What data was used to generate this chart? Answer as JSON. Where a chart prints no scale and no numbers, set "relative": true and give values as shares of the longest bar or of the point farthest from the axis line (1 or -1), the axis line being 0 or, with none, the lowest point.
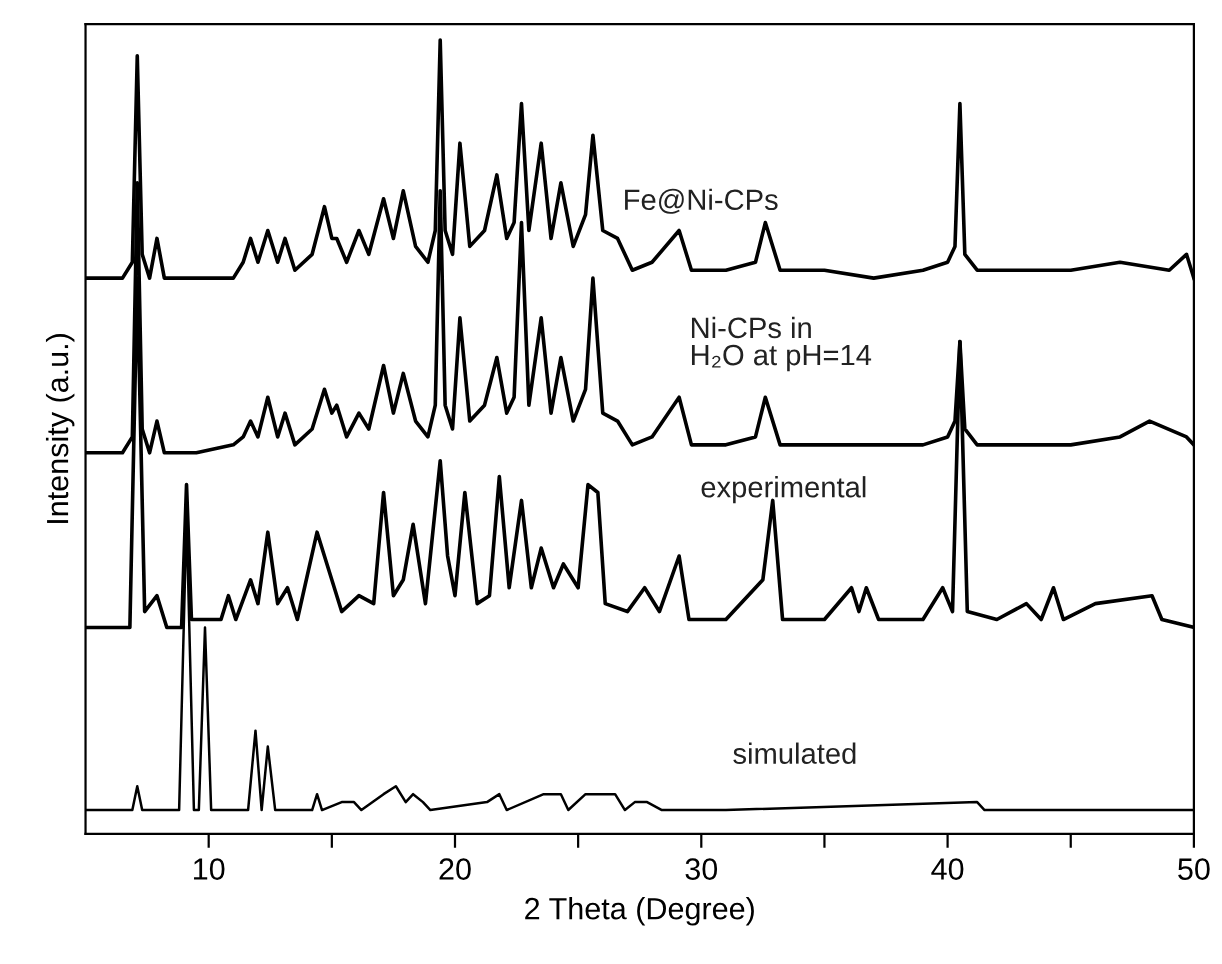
{
  "chart_data": {
    "type": "line",
    "xlabel": "2 Theta (Degree)",
    "ylabel": "Intensity (a.u.)",
    "relative": true,
    "tick_labels": "x",
    "grid": false,
    "legend": false,
    "marker": "none",
    "line_style": "solid",
    "xlim": [
      5,
      50
    ],
    "xticks": [
      10,
      {
        "value": 15,
        "label": null
      },
      20,
      {
        "value": 25,
        "label": null
      },
      30,
      {
        "value": 35,
        "label": null
      },
      40,
      {
        "value": 45,
        "label": null
      },
      50
    ],
    "series": [
      {
        "name": "Fe@Ni-CPs",
        "color": "#000000",
        "x": [
          5,
          6.5,
          6.9,
          7.1,
          7.3,
          7.6,
          7.9,
          8.2,
          9.5,
          11,
          11.4,
          11.7,
          12.0,
          12.4,
          12.8,
          13.1,
          13.5,
          14.2,
          14.7,
          15.0,
          15.2,
          15.6,
          16.1,
          16.5,
          17.1,
          17.5,
          17.9,
          18.4,
          18.9,
          19.2,
          19.4,
          19.6,
          19.9,
          20.2,
          20.6,
          21.2,
          21.7,
          22.1,
          22.4,
          22.7,
          23.0,
          23.5,
          23.9,
          24.3,
          24.8,
          25.3,
          25.6,
          26.0,
          26.6,
          27.2,
          28,
          29.1,
          29.6,
          31,
          32.2,
          32.6,
          33.2,
          35,
          37,
          39,
          40.0,
          40.3,
          40.5,
          40.7,
          41.2,
          43,
          45,
          47,
          49,
          49.7,
          50
        ],
        "values": [
          0.7,
          0.7,
          0.72,
          0.98,
          0.73,
          0.7,
          0.75,
          0.7,
          0.7,
          0.7,
          0.72,
          0.75,
          0.72,
          0.76,
          0.72,
          0.75,
          0.71,
          0.73,
          0.79,
          0.75,
          0.75,
          0.72,
          0.76,
          0.73,
          0.8,
          0.75,
          0.81,
          0.74,
          0.72,
          0.76,
          1.0,
          0.76,
          0.73,
          0.87,
          0.74,
          0.76,
          0.83,
          0.75,
          0.77,
          0.92,
          0.76,
          0.87,
          0.75,
          0.82,
          0.74,
          0.78,
          0.88,
          0.76,
          0.75,
          0.71,
          0.72,
          0.76,
          0.71,
          0.71,
          0.72,
          0.77,
          0.71,
          0.71,
          0.7,
          0.71,
          0.72,
          0.74,
          0.92,
          0.73,
          0.71,
          0.71,
          0.71,
          0.72,
          0.71,
          0.73,
          0.7
        ]
      },
      {
        "name": "Ni-CPs in\nH₂O at pH=14",
        "color": "#000000",
        "x": [
          5,
          6.5,
          6.9,
          7.1,
          7.3,
          7.6,
          7.9,
          8.2,
          9.5,
          11,
          11.4,
          11.7,
          12.0,
          12.4,
          12.8,
          13.1,
          13.5,
          14.2,
          14.7,
          15.0,
          15.2,
          15.6,
          16.1,
          16.5,
          17.1,
          17.5,
          17.9,
          18.4,
          18.9,
          19.2,
          19.4,
          19.6,
          19.9,
          20.2,
          20.6,
          21.2,
          21.7,
          22.1,
          22.4,
          22.7,
          23.0,
          23.5,
          23.9,
          24.3,
          24.8,
          25.3,
          25.6,
          26.0,
          26.6,
          27.2,
          28,
          29.1,
          29.6,
          31,
          32.2,
          32.6,
          33.2,
          35,
          37,
          39,
          40.0,
          40.3,
          40.5,
          40.7,
          41.2,
          43,
          45,
          47,
          48.2,
          49.7,
          50
        ],
        "values": [
          0.48,
          0.48,
          0.5,
          0.82,
          0.51,
          0.48,
          0.52,
          0.48,
          0.48,
          0.49,
          0.5,
          0.52,
          0.5,
          0.55,
          0.5,
          0.53,
          0.49,
          0.51,
          0.56,
          0.53,
          0.54,
          0.5,
          0.53,
          0.51,
          0.59,
          0.53,
          0.58,
          0.52,
          0.5,
          0.54,
          0.81,
          0.54,
          0.51,
          0.65,
          0.52,
          0.54,
          0.6,
          0.53,
          0.55,
          0.77,
          0.54,
          0.65,
          0.53,
          0.6,
          0.52,
          0.56,
          0.7,
          0.53,
          0.52,
          0.49,
          0.5,
          0.55,
          0.49,
          0.49,
          0.5,
          0.55,
          0.49,
          0.49,
          0.49,
          0.49,
          0.5,
          0.52,
          0.62,
          0.51,
          0.49,
          0.49,
          0.49,
          0.5,
          0.52,
          0.5,
          0.49
        ]
      },
      {
        "name": "experimental",
        "color": "#000000",
        "x": [
          5,
          6.8,
          7.1,
          7.4,
          7.9,
          8.3,
          8.9,
          9.1,
          9.3,
          10.5,
          10.8,
          11.1,
          11.7,
          12.0,
          12.4,
          12.8,
          13.2,
          13.6,
          14.4,
          14.8,
          15.4,
          16.1,
          16.7,
          17.1,
          17.5,
          17.9,
          18.3,
          18.8,
          19.4,
          19.7,
          20.0,
          20.4,
          20.9,
          21.4,
          21.8,
          22.2,
          22.7,
          23.1,
          23.5,
          24.0,
          24.4,
          25.0,
          25.4,
          25.8,
          26.1,
          27.0,
          27.7,
          28.3,
          29.1,
          29.5,
          31,
          32.5,
          32.9,
          33.3,
          35,
          36.1,
          36.4,
          36.7,
          37.2,
          39,
          39.8,
          40.2,
          40.5,
          40.8,
          42,
          43.2,
          43.8,
          44.3,
          44.7,
          46,
          48.3,
          48.7,
          50
        ],
        "values": [
          0.26,
          0.26,
          0.7,
          0.28,
          0.3,
          0.26,
          0.26,
          0.44,
          0.27,
          0.27,
          0.3,
          0.27,
          0.32,
          0.29,
          0.38,
          0.29,
          0.31,
          0.27,
          0.38,
          0.34,
          0.28,
          0.3,
          0.29,
          0.43,
          0.3,
          0.32,
          0.39,
          0.29,
          0.47,
          0.35,
          0.3,
          0.43,
          0.29,
          0.3,
          0.45,
          0.31,
          0.42,
          0.31,
          0.36,
          0.31,
          0.34,
          0.31,
          0.44,
          0.43,
          0.29,
          0.28,
          0.31,
          0.28,
          0.35,
          0.27,
          0.27,
          0.32,
          0.42,
          0.27,
          0.27,
          0.31,
          0.28,
          0.31,
          0.27,
          0.27,
          0.31,
          0.28,
          0.62,
          0.28,
          0.27,
          0.29,
          0.27,
          0.31,
          0.27,
          0.29,
          0.3,
          0.27,
          0.26
        ]
      },
      {
        "name": "simulated",
        "color": "#000000",
        "x": [
          5,
          6.9,
          7.1,
          7.3,
          8.8,
          9.1,
          9.4,
          9.6,
          9.85,
          10.1,
          11.6,
          11.9,
          12.15,
          12.4,
          12.7,
          14.2,
          14.4,
          14.6,
          15.4,
          15.9,
          16.2,
          17.1,
          17.6,
          18.0,
          18.3,
          18.7,
          19.0,
          21.3,
          21.8,
          22.1,
          23.6,
          24.3,
          24.6,
          25.3,
          25.8,
          26.5,
          26.9,
          27.3,
          27.8,
          28.4,
          30.5,
          31,
          41.2,
          41.5,
          50
        ],
        "values": [
          0.03,
          0.03,
          0.06,
          0.03,
          0.03,
          0.4,
          0.03,
          0.03,
          0.26,
          0.03,
          0.03,
          0.13,
          0.03,
          0.11,
          0.03,
          0.03,
          0.05,
          0.03,
          0.04,
          0.04,
          0.03,
          0.05,
          0.06,
          0.04,
          0.05,
          0.04,
          0.03,
          0.04,
          0.05,
          0.03,
          0.05,
          0.05,
          0.03,
          0.05,
          0.05,
          0.05,
          0.03,
          0.04,
          0.04,
          0.03,
          0.03,
          0.03,
          0.04,
          0.03,
          0.03
        ]
      }
    ]
  }
}
